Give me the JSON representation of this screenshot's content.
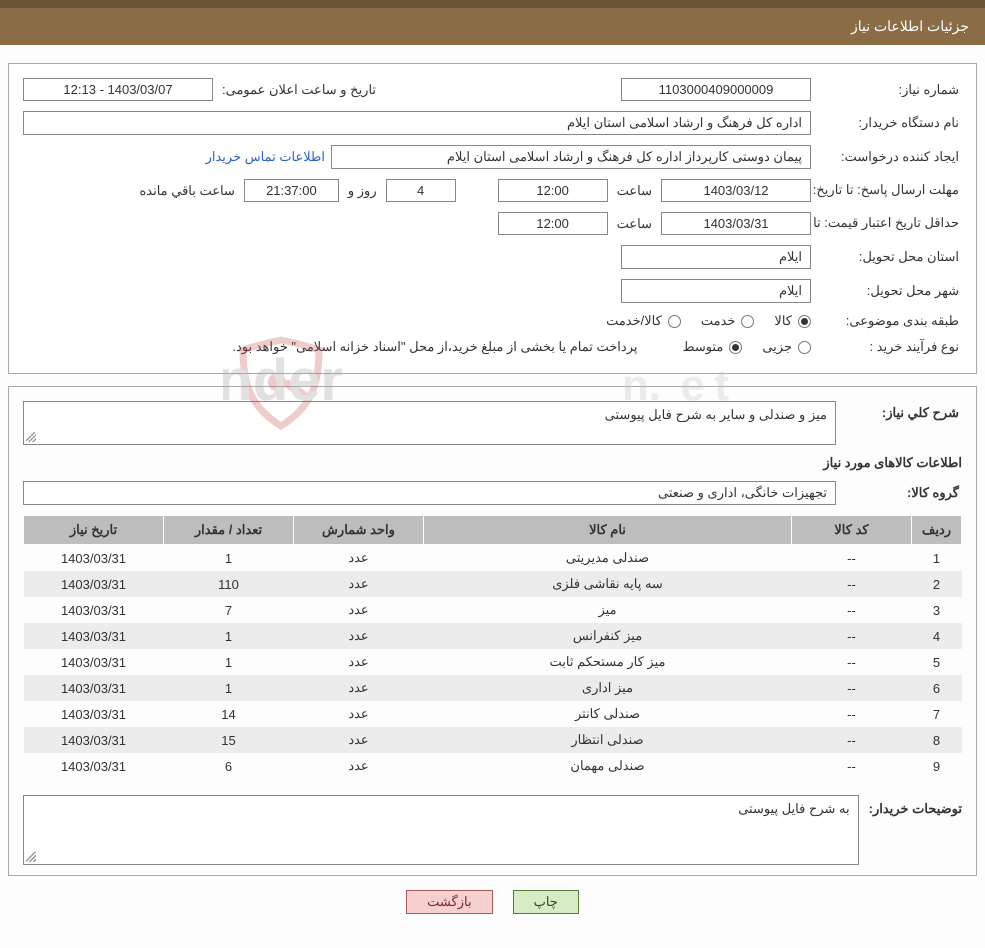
{
  "header": {
    "title": "جزئیات اطلاعات نیاز"
  },
  "info": {
    "need_no_label": "شماره نیاز:",
    "need_no": "1103000409000009",
    "announce_label": "تاریخ و ساعت اعلان عمومی:",
    "announce_value": "1403/03/07 - 12:13",
    "buyer_org_label": "نام دستگاه خریدار:",
    "buyer_org": "اداره کل فرهنگ و ارشاد اسلامی استان ایلام",
    "requester_label": "ایجاد کننده درخواست:",
    "requester": "پیمان دوستی کارپرداز اداره کل فرهنگ و ارشاد اسلامی استان ایلام",
    "contact_link": "اطلاعات تماس خریدار",
    "deadline_label": "مهلت ارسال پاسخ: تا تاریخ:",
    "deadline_date": "1403/03/12",
    "time_label": "ساعت",
    "deadline_time": "12:00",
    "days_remaining": "4",
    "day_and_label": "روز و",
    "remaining_time": "21:37:00",
    "remaining_suffix": "ساعت باقي مانده",
    "validity_label": "حداقل تاریخ اعتبار قیمت: تا تاریخ:",
    "validity_date": "1403/03/31",
    "validity_time": "12:00",
    "province_label": "استان محل تحویل:",
    "province": "ایلام",
    "city_label": "شهر محل تحویل:",
    "city": "ایلام",
    "class_label": "طبقه بندی موضوعی:",
    "class_goods": "کالا",
    "class_service": "خدمت",
    "class_goods_service": "کالا/خدمت",
    "class_selected": "goods",
    "purchase_type_label": "نوع فرآیند خرید :",
    "purchase_minor": "جزیی",
    "purchase_medium": "متوسط",
    "purchase_selected": "medium",
    "payment_note": "پرداخت تمام یا بخشی از مبلغ خرید،از محل \"اسناد خزانه اسلامی\" خواهد بود."
  },
  "need": {
    "general_desc_label": "شرح کلي نياز:",
    "general_desc": "میز و صندلی و سایر به شرح فایل پیوستی",
    "items_title": "اطلاعات کالاهای مورد نیاز",
    "group_label": "گروه کالا:",
    "group_value": "تجهیزات خانگی، اداری و صنعتی",
    "buyer_notes_label": "توضیحات خریدار:",
    "buyer_notes": "به شرح فایل پیوستی"
  },
  "table": {
    "columns": [
      "ردیف",
      "کد کالا",
      "نام کالا",
      "واحد شمارش",
      "تعداد / مقدار",
      "تاریخ نیاز"
    ],
    "rows": [
      {
        "idx": "1",
        "code": "--",
        "name": "صندلی مدیریتی",
        "unit": "عدد",
        "qty": "1",
        "date": "1403/03/31"
      },
      {
        "idx": "2",
        "code": "--",
        "name": "سه پایه نقاشی فلزی",
        "unit": "عدد",
        "qty": "110",
        "date": "1403/03/31"
      },
      {
        "idx": "3",
        "code": "--",
        "name": "میز",
        "unit": "عدد",
        "qty": "7",
        "date": "1403/03/31"
      },
      {
        "idx": "4",
        "code": "--",
        "name": "میز کنفرانس",
        "unit": "عدد",
        "qty": "1",
        "date": "1403/03/31"
      },
      {
        "idx": "5",
        "code": "--",
        "name": "میز کار مستحکم ثابت",
        "unit": "عدد",
        "qty": "1",
        "date": "1403/03/31"
      },
      {
        "idx": "6",
        "code": "--",
        "name": "میز اداری",
        "unit": "عدد",
        "qty": "1",
        "date": "1403/03/31"
      },
      {
        "idx": "7",
        "code": "--",
        "name": "صندلی کانتر",
        "unit": "عدد",
        "qty": "14",
        "date": "1403/03/31"
      },
      {
        "idx": "8",
        "code": "--",
        "name": "صندلی انتظار",
        "unit": "عدد",
        "qty": "15",
        "date": "1403/03/31"
      },
      {
        "idx": "9",
        "code": "--",
        "name": "صندلی مهمان",
        "unit": "عدد",
        "qty": "6",
        "date": "1403/03/31"
      }
    ],
    "col_widths": [
      "50px",
      "120px",
      "auto",
      "130px",
      "130px",
      "140px"
    ]
  },
  "footer": {
    "print": "چاپ",
    "back": "بازگشت"
  },
  "watermark": {
    "text1": "AriaTender",
    "text2": ".net",
    "shield_color": "#c94b4b",
    "text_color": "#9a9a9a"
  }
}
